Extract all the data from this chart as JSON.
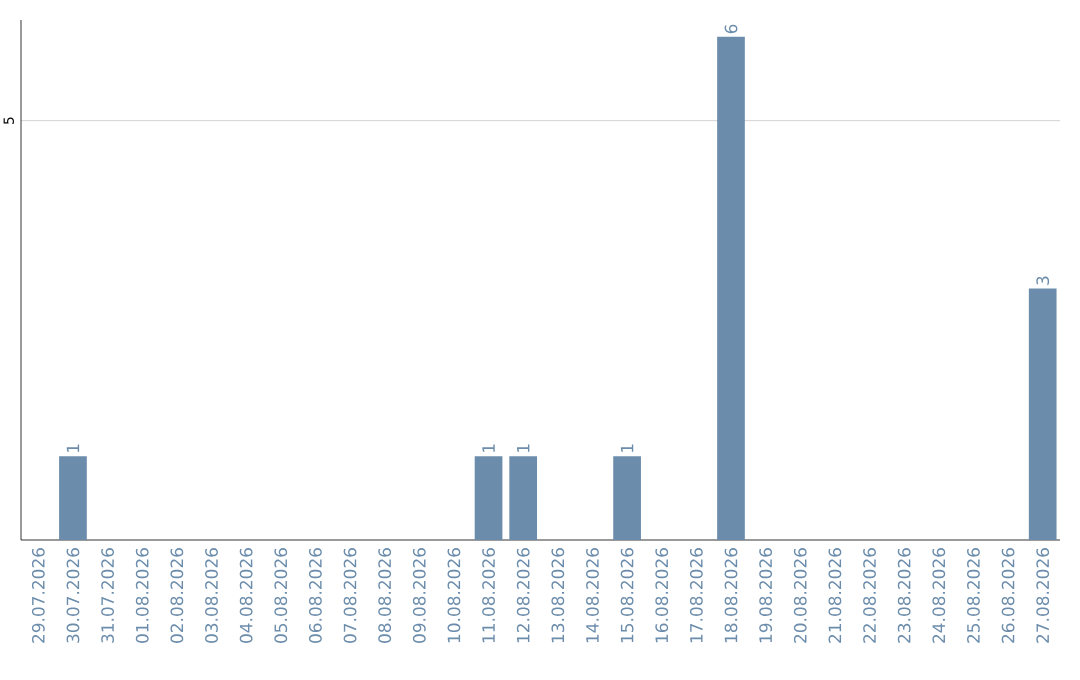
{
  "chart_data": {
    "type": "bar",
    "categories": [
      "29.07.2026",
      "30.07.2026",
      "31.07.2026",
      "01.08.2026",
      "02.08.2026",
      "03.08.2026",
      "04.08.2026",
      "05.08.2026",
      "06.08.2026",
      "07.08.2026",
      "08.08.2026",
      "09.08.2026",
      "10.08.2026",
      "11.08.2026",
      "12.08.2026",
      "13.08.2026",
      "14.08.2026",
      "15.08.2026",
      "16.08.2026",
      "17.08.2026",
      "18.08.2026",
      "19.08.2026",
      "20.08.2026",
      "21.08.2026",
      "22.08.2026",
      "23.08.2026",
      "24.08.2026",
      "25.08.2026",
      "26.08.2026",
      "27.08.2026"
    ],
    "values": [
      0,
      1,
      0,
      0,
      0,
      0,
      0,
      0,
      0,
      0,
      0,
      0,
      0,
      1,
      1,
      0,
      0,
      1,
      0,
      0,
      6,
      0,
      0,
      0,
      0,
      0,
      0,
      0,
      0,
      3
    ],
    "value_labels": [
      null,
      "1",
      null,
      null,
      null,
      null,
      null,
      null,
      null,
      null,
      null,
      null,
      null,
      "1",
      "1",
      null,
      null,
      "1",
      null,
      null,
      "6",
      null,
      null,
      null,
      null,
      null,
      null,
      null,
      null,
      "3"
    ],
    "color": "#6b8cab",
    "ylim": [
      0,
      6.2
    ],
    "yticks": [
      5
    ],
    "grid": "y"
  }
}
